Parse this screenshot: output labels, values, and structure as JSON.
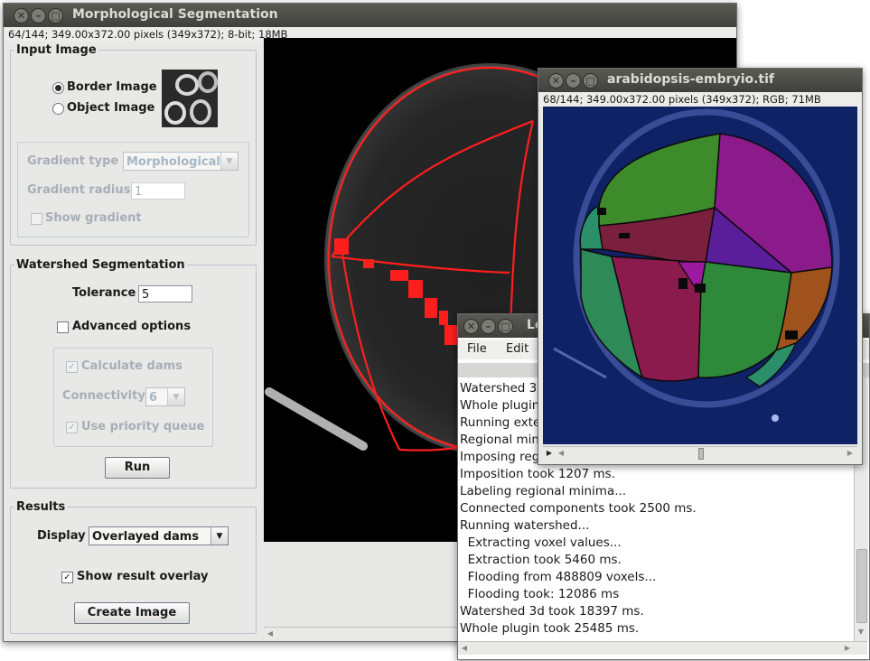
{
  "morph_window": {
    "title": "Morphological Segmentation",
    "info": "64/144; 349.00x372.00 pixels (349x372); 8-bit; 18MB"
  },
  "input_image": {
    "legend": "Input Image",
    "border_image_label": "Border Image",
    "object_image_label": "Object Image",
    "selected": "Border Image",
    "gradient_type_label": "Gradient type",
    "gradient_type_value": "Morphological",
    "gradient_radius_label": "Gradient radius",
    "gradient_radius_value": "1",
    "show_gradient_label": "Show gradient",
    "show_gradient_checked": false
  },
  "watershed": {
    "legend": "Watershed Segmentation",
    "tolerance_label": "Tolerance",
    "tolerance_value": "5",
    "advanced_label": "Advanced options",
    "advanced_checked": false,
    "calc_dams_label": "Calculate dams",
    "calc_dams_checked": true,
    "connectivity_label": "Connectivity",
    "connectivity_value": "6",
    "priority_queue_label": "Use priority queue",
    "priority_queue_checked": true,
    "run_label": "Run"
  },
  "results": {
    "legend": "Results",
    "display_label": "Display",
    "display_value": "Overlayed dams",
    "show_overlay_label": "Show result overlay",
    "show_overlay_checked": true,
    "create_image_label": "Create Image"
  },
  "log_window": {
    "title": "Lo",
    "menu": [
      "File",
      "Edit"
    ],
    "lines": [
      "Watershed 3",
      "Whole plugin",
      "Running exte",
      "Regional min",
      "Imposing reg",
      "Imposition took 1207 ms.",
      "Labeling regional minima...",
      "Connected components took 2500 ms.",
      "Running watershed...",
      "  Extracting voxel values...",
      "  Extraction took 5460 ms.",
      "  Flooding from 488809 voxels...",
      "  Flooding took: 12086 ms",
      "Watershed 3d took 18397 ms.",
      "Whole plugin took 25485 ms."
    ]
  },
  "embryo_window": {
    "title": "arabidopsis-embryio.tif",
    "info": "68/144; 349.00x372.00 pixels (349x372); RGB; 71MB"
  },
  "colors": {
    "dam_red": "#ff1e1e",
    "embryo_bg": "#0f2266",
    "segment_green": "#2e8b57",
    "segment_purple": "#8b1a8b",
    "segment_maroon": "#7a1f3d",
    "segment_orange": "#a0521d"
  }
}
